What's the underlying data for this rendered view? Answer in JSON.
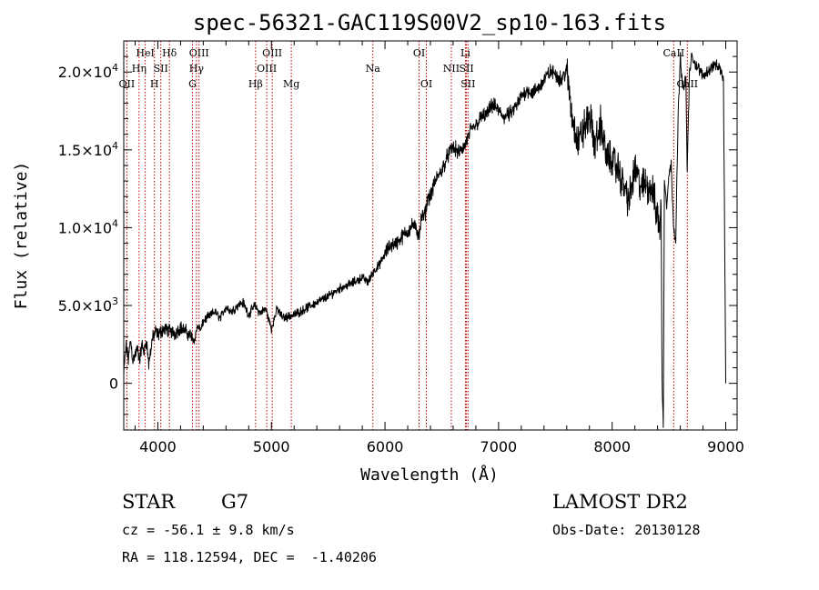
{
  "chart_data": {
    "type": "line",
    "title": "spec-56321-GAC119S00V2_sp10-163.fits",
    "xlabel": "Wavelength (Å)",
    "ylabel": "Flux (relative)",
    "xlim": [
      3700,
      9100
    ],
    "ylim": [
      -3000,
      22000
    ],
    "x_ticks": [
      4000,
      5000,
      6000,
      7000,
      8000,
      9000
    ],
    "y_ticks": [
      {
        "value": 0,
        "mantissa": "0",
        "exp": ""
      },
      {
        "value": 5000,
        "mantissa": "5.0×10",
        "exp": "3"
      },
      {
        "value": 10000,
        "mantissa": "1.0×10",
        "exp": "4"
      },
      {
        "value": 15000,
        "mantissa": "1.5×10",
        "exp": "4"
      },
      {
        "value": 20000,
        "mantissa": "2.0×10",
        "exp": "4"
      }
    ],
    "line_color": "#000000",
    "marker_color": "#c00000",
    "spectrum": {
      "x": [
        3700,
        3720,
        3740,
        3760,
        3780,
        3800,
        3820,
        3840,
        3860,
        3880,
        3900,
        3920,
        3950,
        3980,
        4000,
        4050,
        4100,
        4150,
        4200,
        4250,
        4300,
        4320,
        4350,
        4380,
        4400,
        4450,
        4500,
        4550,
        4600,
        4650,
        4700,
        4750,
        4800,
        4850,
        4900,
        4950,
        5000,
        5050,
        5100,
        5150,
        5200,
        5300,
        5400,
        5500,
        5600,
        5700,
        5800,
        5850,
        5900,
        5950,
        6000,
        6050,
        6100,
        6150,
        6200,
        6250,
        6300,
        6320,
        6350,
        6380,
        6400,
        6450,
        6500,
        6550,
        6600,
        6650,
        6700,
        6750,
        6800,
        6850,
        6900,
        6950,
        7000,
        7050,
        7100,
        7150,
        7200,
        7250,
        7300,
        7350,
        7400,
        7450,
        7500,
        7550,
        7600,
        7620,
        7650,
        7700,
        7750,
        7800,
        7850,
        7900,
        7950,
        8000,
        8050,
        8100,
        8150,
        8200,
        8250,
        8300,
        8350,
        8380,
        8420,
        8430,
        8440,
        8450,
        8460,
        8480,
        8500,
        8520,
        8540,
        8560,
        8580,
        8600,
        8620,
        8650,
        8660,
        8680,
        8700,
        8750,
        8800,
        8850,
        8900,
        8950,
        8980,
        9000
      ],
      "y": [
        500,
        2500,
        1500,
        2800,
        1500,
        1800,
        2200,
        1500,
        2500,
        2000,
        2800,
        1200,
        2800,
        3300,
        3100,
        3500,
        3400,
        3200,
        3600,
        3300,
        3000,
        2700,
        3700,
        3400,
        4000,
        4300,
        4600,
        4200,
        4900,
        4600,
        5000,
        5200,
        4400,
        5000,
        4500,
        4800,
        3500,
        4800,
        4200,
        4300,
        4400,
        4800,
        5200,
        5600,
        6100,
        6400,
        6800,
        6500,
        7200,
        7600,
        8300,
        8900,
        9000,
        9400,
        9800,
        10200,
        9500,
        10600,
        10800,
        12000,
        12000,
        13100,
        13700,
        14600,
        15200,
        14800,
        15200,
        16200,
        16600,
        17100,
        17300,
        17900,
        17500,
        17100,
        17300,
        17700,
        18400,
        18900,
        18600,
        19000,
        19500,
        20000,
        19900,
        19500,
        20100,
        18800,
        17000,
        15500,
        16300,
        17200,
        15300,
        16700,
        14500,
        14400,
        13700,
        12800,
        11700,
        13800,
        12600,
        12800,
        12500,
        11400,
        10000,
        11800,
        0,
        -2800,
        13000,
        11500,
        13500,
        14000,
        10300,
        9000,
        17000,
        21000,
        19000,
        19500,
        13500,
        19800,
        21000,
        20300,
        19800,
        20100,
        20500,
        20200,
        19500,
        0
      ]
    },
    "noise_amplitude": [
      {
        "from": 3700,
        "to": 4300,
        "amp": 500
      },
      {
        "from": 4300,
        "to": 6000,
        "amp": 320
      },
      {
        "from": 6000,
        "to": 7600,
        "amp": 550
      },
      {
        "from": 7600,
        "to": 8440,
        "amp": 1300
      },
      {
        "from": 8440,
        "to": 9000,
        "amp": 400
      }
    ],
    "lines": [
      {
        "wave": 3727,
        "label": "OII",
        "row": 3
      },
      {
        "wave": 3835,
        "label": "Hη",
        "row": 2
      },
      {
        "wave": 3889,
        "label": "HeI",
        "row": 1
      },
      {
        "wave": 3970,
        "label": "H",
        "row": 3
      },
      {
        "wave": 4026,
        "label": "SII",
        "row": 2
      },
      {
        "wave": 4102,
        "label": "Hδ",
        "row": 1
      },
      {
        "wave": 4305,
        "label": "G",
        "row": 3
      },
      {
        "wave": 4340,
        "label": "Hγ",
        "row": 2
      },
      {
        "wave": 4363,
        "label": "OIII",
        "row": 1
      },
      {
        "wave": 4861,
        "label": "Hβ",
        "row": 3
      },
      {
        "wave": 4959,
        "label": "OIII",
        "row": 2
      },
      {
        "wave": 5007,
        "label": "OIII",
        "row": 1
      },
      {
        "wave": 5175,
        "label": "Mg",
        "row": 3
      },
      {
        "wave": 5893,
        "label": "Na",
        "row": 2
      },
      {
        "wave": 6300,
        "label": "OI",
        "row": 1
      },
      {
        "wave": 6364,
        "label": "OI",
        "row": 3
      },
      {
        "wave": 6584,
        "label": "NII",
        "row": 2
      },
      {
        "wave": 6708,
        "label": "Li",
        "row": 1
      },
      {
        "wave": 6717,
        "label": "SII",
        "row": 2
      },
      {
        "wave": 6731,
        "label": "SII",
        "row": 3
      },
      {
        "wave": 8542,
        "label": "CaII",
        "row": 1
      },
      {
        "wave": 8662,
        "label": "CaII",
        "row": 3
      }
    ]
  },
  "info": {
    "class_label": "STAR",
    "subclass_label": "G7",
    "cz_line": "cz = -56.1 ± 9.8 km/s",
    "coords_line": "RA = 118.12594, DEC =  -1.40206",
    "survey_label": "LAMOST DR2",
    "obs_date_line": "Obs-Date: 20130128"
  }
}
